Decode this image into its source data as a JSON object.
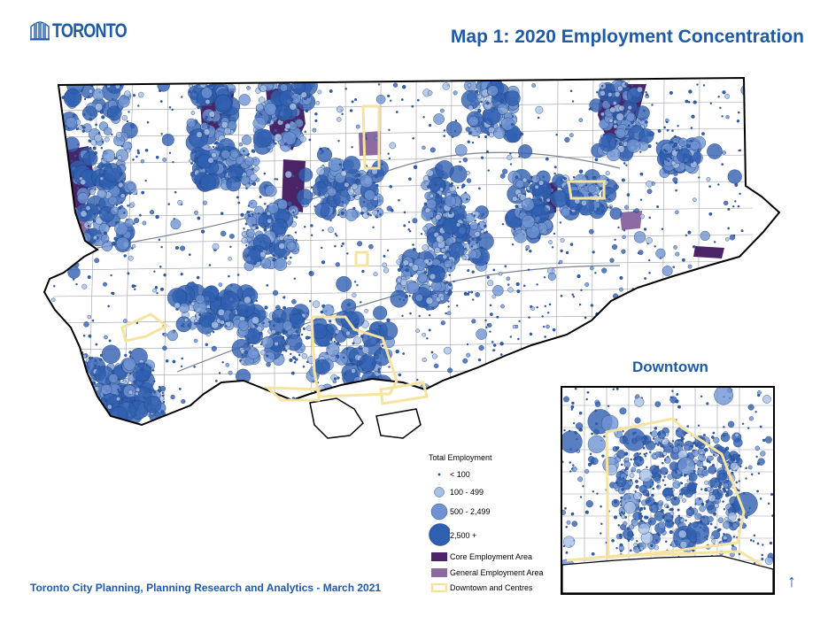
{
  "header": {
    "logo_text": "TORONTO",
    "title": "Map 1: 2020 Employment Concentration"
  },
  "footer": {
    "credit": "Toronto City Planning, Planning Research and Analytics - March 2021"
  },
  "inset": {
    "title": "Downtown"
  },
  "legend": {
    "title": "Total Employment",
    "items": [
      {
        "label": "< 100",
        "symbol": "dot-small"
      },
      {
        "label": "100 - 499",
        "symbol": "circle-light"
      },
      {
        "label": "500 - 2,499",
        "symbol": "circle-medium"
      },
      {
        "label": "2,500 +",
        "symbol": "circle-large"
      },
      {
        "label": "Core Employment Area",
        "symbol": "swatch-dark-purple"
      },
      {
        "label": "General Employment Area",
        "symbol": "swatch-light-purple"
      },
      {
        "label": "Downtown and Centres",
        "symbol": "outline-yellow"
      }
    ]
  },
  "colors": {
    "brand_blue": "#1f5aa6",
    "circle_light": "#a9c0e6",
    "circle_medium": "#6f93d2",
    "circle_dark": "#2f5fb0",
    "core_employment": "#4a2466",
    "general_employment": "#8e6aa3",
    "centres_outline": "#f6e3a1"
  },
  "north_arrow": {
    "glyph": "↑"
  }
}
